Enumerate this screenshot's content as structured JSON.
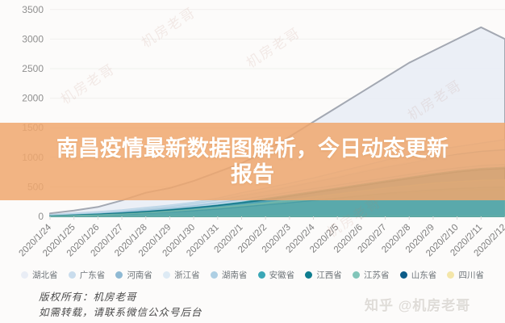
{
  "banner": {
    "title_lines": [
      "南昌疫情最新数据图解析，今日动态更新",
      "报告"
    ],
    "bg_color": "#F0A76D",
    "text_color": "#FFFFFF"
  },
  "decor": {
    "watermark": "机房老哥"
  },
  "footer": {
    "copyright_line1": "版权所有：机房老哥",
    "copyright_line2": "如需转载，请联系微信公众号后台",
    "zhihu_watermark": "知乎 @机房老哥"
  },
  "chart_data": {
    "type": "area",
    "title": "",
    "xlabel": "",
    "ylabel": "",
    "ylim": [
      0,
      3500
    ],
    "yticks": [
      0,
      500,
      1000,
      1500,
      2000,
      2500,
      3000,
      3500
    ],
    "grid": "faint horizontal",
    "legend_position": "bottom",
    "stacked": false,
    "x": [
      "2020/1/24",
      "2020/1/25",
      "2020/1/26",
      "2020/1/27",
      "2020/1/28",
      "2020/1/29",
      "2020/1/30",
      "2020/1/31",
      "2020/2/1",
      "2020/2/2",
      "2020/2/3",
      "2020/2/4",
      "2020/2/5",
      "2020/2/6",
      "2020/2/7",
      "2020/2/8",
      "2020/2/9",
      "2020/2/10",
      "2020/2/11",
      "2020/2/12"
    ],
    "series": [
      {
        "name": "湖北省",
        "color": "#e9edf5",
        "stroke": "#a3a8b2",
        "values": [
          50,
          100,
          160,
          270,
          400,
          480,
          600,
          750,
          900,
          1100,
          1350,
          1600,
          1850,
          2100,
          2350,
          2600,
          2800,
          3000,
          3200,
          3000
        ]
      },
      {
        "name": "广东省",
        "color": "#c9dcec",
        "stroke": "#b4cfe3",
        "values": [
          30,
          55,
          80,
          110,
          150,
          190,
          240,
          310,
          400,
          480,
          560,
          650,
          750,
          850,
          950,
          1050,
          1120,
          1180,
          1240,
          1300
        ]
      },
      {
        "name": "河南省",
        "color": "#8fb9d3",
        "stroke": "#7fadc9",
        "values": [
          20,
          40,
          60,
          90,
          130,
          170,
          220,
          280,
          350,
          420,
          500,
          580,
          660,
          750,
          830,
          900,
          980,
          1050,
          1100,
          1130
        ]
      },
      {
        "name": "浙江省",
        "color": "#ddeaf4",
        "stroke": "#c8ddec",
        "values": [
          25,
          45,
          70,
          100,
          140,
          180,
          230,
          290,
          360,
          430,
          510,
          590,
          670,
          760,
          840,
          910,
          980,
          1030,
          1080,
          1100
        ]
      },
      {
        "name": "湖南省",
        "color": "#aecfe3",
        "stroke": "#9cc2da",
        "values": [
          15,
          30,
          50,
          75,
          105,
          140,
          180,
          230,
          290,
          350,
          410,
          470,
          530,
          590,
          650,
          710,
          770,
          820,
          860,
          880
        ]
      },
      {
        "name": "安徽省",
        "color": "#3aa7b6",
        "stroke": "#2d99a8",
        "values": [
          10,
          25,
          40,
          60,
          85,
          115,
          150,
          190,
          240,
          300,
          360,
          420,
          480,
          540,
          600,
          660,
          720,
          770,
          810,
          830
        ]
      },
      {
        "name": "江西省",
        "color": "#0e7d8f",
        "stroke": "#0c6f80",
        "values": [
          10,
          20,
          35,
          55,
          80,
          110,
          145,
          185,
          230,
          280,
          340,
          400,
          460,
          520,
          580,
          640,
          700,
          750,
          790,
          810
        ]
      },
      {
        "name": "江苏省",
        "color": "#82c5b9",
        "stroke": "#74b8ac",
        "values": [
          5,
          15,
          25,
          40,
          60,
          85,
          115,
          150,
          190,
          230,
          280,
          330,
          380,
          430,
          480,
          520,
          560,
          590,
          610,
          620
        ]
      },
      {
        "name": "山东省",
        "color": "#0c5c88",
        "stroke": "#0a527a",
        "values": [
          5,
          12,
          22,
          35,
          52,
          72,
          95,
          125,
          160,
          195,
          230,
          270,
          310,
          350,
          390,
          420,
          450,
          470,
          490,
          500
        ]
      },
      {
        "name": "四川省",
        "color": "#f4e6a9",
        "stroke": "#ead893",
        "values": [
          8,
          18,
          30,
          45,
          65,
          90,
          115,
          145,
          180,
          215,
          250,
          285,
          320,
          350,
          380,
          405,
          425,
          440,
          450,
          460
        ]
      }
    ]
  }
}
